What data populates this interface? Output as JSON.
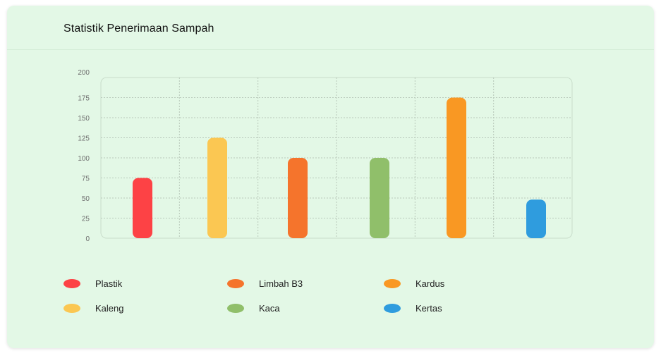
{
  "header": {
    "title": "Statistik Penerimaan Sampah"
  },
  "chart_data": {
    "type": "bar",
    "categories": [
      "Plastik",
      "Kaleng",
      "Limbah B3",
      "Kaca",
      "Kardus",
      "Kertas"
    ],
    "values": [
      75,
      125,
      100,
      100,
      175,
      48
    ],
    "colors": [
      "#fd4245",
      "#fbc752",
      "#f5742c",
      "#90bf6a",
      "#f99823",
      "#2f9cde"
    ],
    "ylim": [
      0,
      200
    ],
    "yticks": [
      0,
      25,
      50,
      75,
      100,
      125,
      150,
      175,
      200
    ],
    "grid": true,
    "title": "",
    "xlabel": "",
    "ylabel": ""
  },
  "legend": [
    {
      "label": "Plastik",
      "color": "#fd4245"
    },
    {
      "label": "Kaleng",
      "color": "#fbc752"
    },
    {
      "label": "Limbah B3",
      "color": "#f5742c"
    },
    {
      "label": "Kaca",
      "color": "#90bf6a"
    },
    {
      "label": "Kardus",
      "color": "#f99823"
    },
    {
      "label": "Kertas",
      "color": "#2f9cde"
    }
  ]
}
